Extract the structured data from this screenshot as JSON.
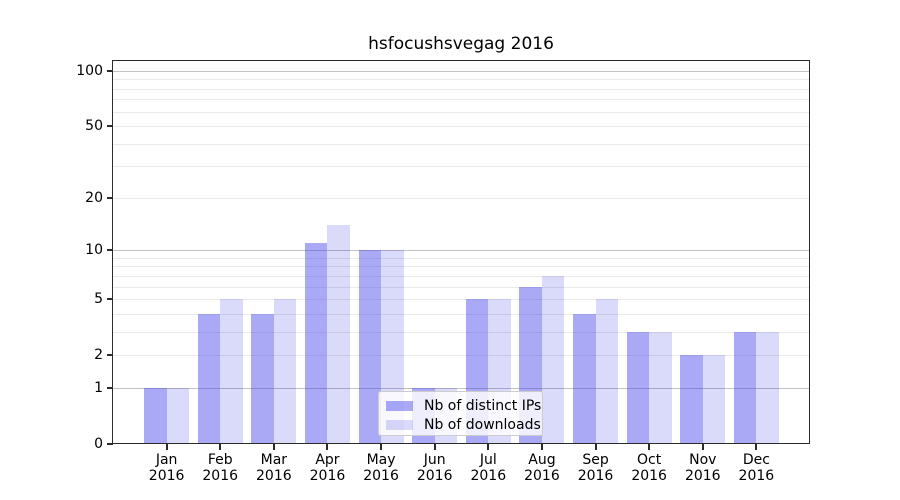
{
  "title": "hsfocushsvegag 2016",
  "colors": {
    "ips_bar": "rgba(64,64,235,0.45)",
    "downloads_bar": "rgba(10,10,224,0.15)",
    "ips_bar_hex_on_white": "#a9a9f6",
    "downloads_bar_hex_on_white": "#dadafa",
    "grid_major": "#c2c2c2",
    "grid_minor": "#e9e9e9",
    "spine": "#2b2b2b",
    "text": "#000000",
    "legend_border": "#cccccc"
  },
  "legend": {
    "items": [
      {
        "label": "Nb of distinct IPs"
      },
      {
        "label": "Nb of downloads"
      }
    ]
  },
  "chart_data": {
    "type": "bar",
    "title": "hsfocushsvegag 2016",
    "categories": [
      "Jan 2016",
      "Feb 2016",
      "Mar 2016",
      "Apr 2016",
      "May 2016",
      "Jun 2016",
      "Jul 2016",
      "Aug 2016",
      "Sep 2016",
      "Oct 2016",
      "Nov 2016",
      "Dec 2016"
    ],
    "series": [
      {
        "name": "Nb of distinct IPs",
        "color": "rgba(64,64,235,0.45)",
        "values": [
          1,
          4,
          4,
          11,
          10,
          1,
          5,
          6,
          4,
          3,
          2,
          3
        ]
      },
      {
        "name": "Nb of downloads",
        "color": "rgba(10,10,224,0.15)",
        "values": [
          1,
          5,
          5,
          14,
          10,
          1,
          5,
          7,
          5,
          3,
          2,
          3
        ]
      }
    ],
    "xlabel": "",
    "ylabel": "",
    "y_axis": {
      "scale": "log1p",
      "ticks": [
        0,
        1,
        2,
        5,
        10,
        20,
        50,
        100
      ],
      "max": 113,
      "grid_major": [
        1,
        10,
        100
      ],
      "grid_minor": [
        2,
        3,
        4,
        5,
        6,
        7,
        8,
        9,
        20,
        30,
        40,
        50,
        60,
        70,
        80,
        90
      ]
    },
    "grid": true,
    "legend_position": "lower center"
  }
}
